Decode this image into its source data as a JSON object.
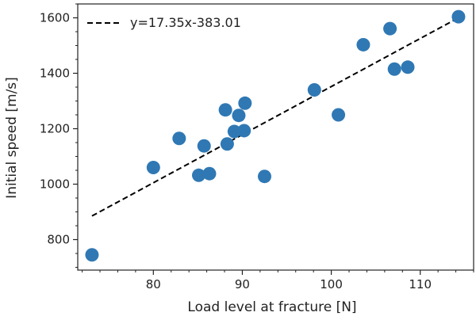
{
  "chart_data": {
    "type": "scatter",
    "title": "",
    "xlabel": "Load level at fracture [N]",
    "ylabel": "Initial speed [m/s]",
    "xlim": [
      71.5,
      116
    ],
    "ylim": [
      690,
      1650
    ],
    "x_ticks": [
      80,
      90,
      100,
      110
    ],
    "y_ticks": [
      800,
      1000,
      1200,
      1400,
      1600
    ],
    "grid": false,
    "legend_position": "top-left",
    "series": [
      {
        "kind": "scatter",
        "color": "#2f78b4",
        "points": [
          {
            "x": 73.1,
            "y": 745
          },
          {
            "x": 80.0,
            "y": 1060
          },
          {
            "x": 82.9,
            "y": 1165
          },
          {
            "x": 85.1,
            "y": 1032
          },
          {
            "x": 85.7,
            "y": 1138
          },
          {
            "x": 86.3,
            "y": 1038
          },
          {
            "x": 88.1,
            "y": 1268
          },
          {
            "x": 88.3,
            "y": 1145
          },
          {
            "x": 89.1,
            "y": 1190
          },
          {
            "x": 89.6,
            "y": 1248
          },
          {
            "x": 90.2,
            "y": 1193
          },
          {
            "x": 90.3,
            "y": 1292
          },
          {
            "x": 92.5,
            "y": 1028
          },
          {
            "x": 98.1,
            "y": 1340
          },
          {
            "x": 100.8,
            "y": 1250
          },
          {
            "x": 103.6,
            "y": 1503
          },
          {
            "x": 106.6,
            "y": 1561
          },
          {
            "x": 107.1,
            "y": 1415
          },
          {
            "x": 108.6,
            "y": 1422
          },
          {
            "x": 114.3,
            "y": 1604
          }
        ]
      },
      {
        "kind": "line",
        "name": "y=17.35x-383.01",
        "color": "#000000",
        "dash": "dashed",
        "slope": 17.35,
        "intercept": -383.01,
        "x_range": [
          73.1,
          114.3
        ]
      }
    ]
  }
}
